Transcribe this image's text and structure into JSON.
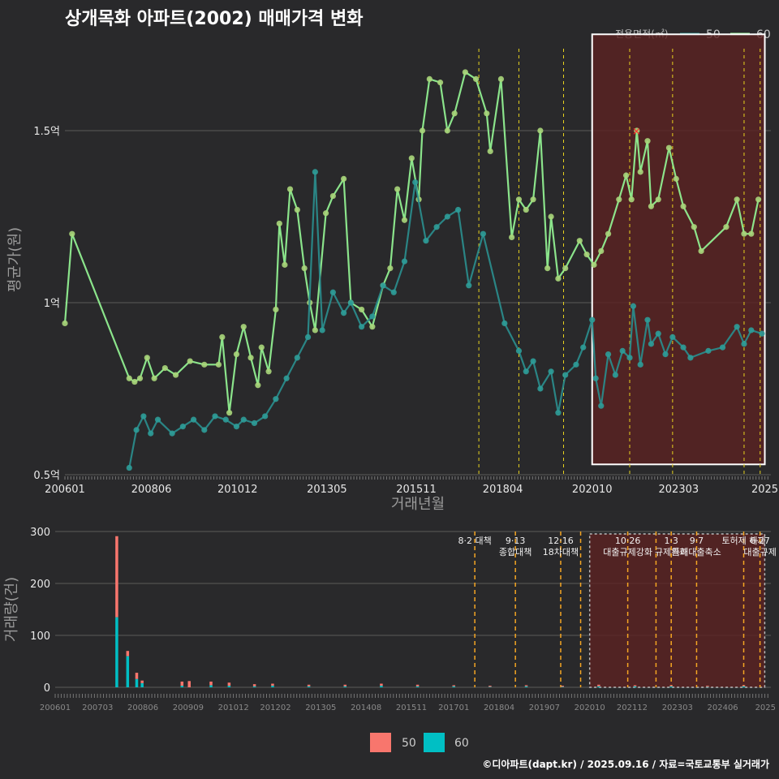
{
  "title": "상개목화 아파트(2002) 매매가격 변화",
  "footer": "©디아파트(dapt.kr) / 2025.09.16 / 자료=국토교통부 실거래가",
  "colors": {
    "bg": "#29292b",
    "grid": "#5a5a5a",
    "line50": "#2a8a8a",
    "dot50": "#2e9c98",
    "line60": "#90ee90",
    "dot60": "#a8d57a",
    "policy": "#e8d21f",
    "highlight": "#5b2222",
    "bar50": "#f8766d",
    "bar60": "#00bfc4",
    "marker": "#ff2a2a"
  },
  "legend": {
    "title": "전용면적(㎡)",
    "items": [
      {
        "label": "50",
        "color": "#2a8a8a"
      },
      {
        "label": "60",
        "color": "#90ee90"
      }
    ]
  },
  "bar_legend": {
    "items": [
      {
        "label": "50",
        "color": "#f8766d"
      },
      {
        "label": "60",
        "color": "#00bfc4"
      }
    ]
  },
  "chart_data": [
    {
      "type": "line",
      "ylabel": "평균가(원)",
      "xlabel": "거래년월",
      "ylim": [
        0.5,
        1.75
      ],
      "yticks": [
        {
          "v": 0.5,
          "label": "0.5억"
        },
        {
          "v": 1.0,
          "label": "1억"
        },
        {
          "v": 1.5,
          "label": "1.5억"
        }
      ],
      "xlim": [
        2006.0,
        2025.75
      ],
      "xticks": [
        {
          "v": 2006.0,
          "label": "200601"
        },
        {
          "v": 2008.42,
          "label": "200806"
        },
        {
          "v": 2010.83,
          "label": "201012"
        },
        {
          "v": 2013.33,
          "label": "201305"
        },
        {
          "v": 2015.83,
          "label": "201511"
        },
        {
          "v": 2018.25,
          "label": "201804"
        },
        {
          "v": 2020.75,
          "label": "202010"
        },
        {
          "v": 2023.17,
          "label": "202303"
        },
        {
          "v": 2025.58,
          "label": "2025"
        }
      ],
      "policy_lines": [
        2017.58,
        2018.7,
        2019.95,
        2021.8,
        2023.0,
        2025.0,
        2025.45
      ],
      "highlight": {
        "x0": 2020.75,
        "x1": 2025.58,
        "y0": 0.53,
        "y1": 1.78
      },
      "peak_marker": {
        "x": 2022.08,
        "y": 1.5
      },
      "series": [
        {
          "name": "60",
          "points": [
            [
              2006.0,
              0.94
            ],
            [
              2006.2,
              1.2
            ],
            [
              2007.8,
              0.78
            ],
            [
              2007.95,
              0.77
            ],
            [
              2008.1,
              0.78
            ],
            [
              2008.3,
              0.84
            ],
            [
              2008.5,
              0.78
            ],
            [
              2008.8,
              0.81
            ],
            [
              2009.1,
              0.79
            ],
            [
              2009.5,
              0.83
            ],
            [
              2009.9,
              0.82
            ],
            [
              2010.3,
              0.82
            ],
            [
              2010.4,
              0.9
            ],
            [
              2010.6,
              0.68
            ],
            [
              2010.8,
              0.85
            ],
            [
              2011.0,
              0.93
            ],
            [
              2011.2,
              0.84
            ],
            [
              2011.4,
              0.76
            ],
            [
              2011.5,
              0.87
            ],
            [
              2011.7,
              0.8
            ],
            [
              2011.9,
              0.98
            ],
            [
              2012.0,
              1.23
            ],
            [
              2012.15,
              1.11
            ],
            [
              2012.3,
              1.33
            ],
            [
              2012.5,
              1.27
            ],
            [
              2012.7,
              1.1
            ],
            [
              2012.85,
              1.0
            ],
            [
              2013.0,
              0.92
            ],
            [
              2013.3,
              1.26
            ],
            [
              2013.5,
              1.31
            ],
            [
              2013.8,
              1.36
            ],
            [
              2014.0,
              1.0
            ],
            [
              2014.3,
              0.98
            ],
            [
              2014.6,
              0.93
            ],
            [
              2014.9,
              1.05
            ],
            [
              2015.1,
              1.1
            ],
            [
              2015.3,
              1.33
            ],
            [
              2015.5,
              1.24
            ],
            [
              2015.7,
              1.42
            ],
            [
              2015.9,
              1.3
            ],
            [
              2016.0,
              1.5
            ],
            [
              2016.2,
              1.65
            ],
            [
              2016.5,
              1.64
            ],
            [
              2016.7,
              1.5
            ],
            [
              2016.9,
              1.55
            ],
            [
              2017.2,
              1.67
            ],
            [
              2017.5,
              1.65
            ],
            [
              2017.8,
              1.55
            ],
            [
              2017.9,
              1.44
            ],
            [
              2018.2,
              1.65
            ],
            [
              2018.5,
              1.19
            ],
            [
              2018.7,
              1.3
            ],
            [
              2018.9,
              1.27
            ],
            [
              2019.1,
              1.3
            ],
            [
              2019.3,
              1.5
            ],
            [
              2019.5,
              1.1
            ],
            [
              2019.6,
              1.25
            ],
            [
              2019.8,
              1.07
            ],
            [
              2020.0,
              1.1
            ],
            [
              2020.4,
              1.18
            ],
            [
              2020.6,
              1.14
            ],
            [
              2020.8,
              1.11
            ],
            [
              2021.0,
              1.15
            ],
            [
              2021.2,
              1.2
            ],
            [
              2021.5,
              1.3
            ],
            [
              2021.7,
              1.37
            ],
            [
              2021.85,
              1.3
            ],
            [
              2022.0,
              1.5
            ],
            [
              2022.1,
              1.38
            ],
            [
              2022.3,
              1.47
            ],
            [
              2022.4,
              1.28
            ],
            [
              2022.6,
              1.3
            ],
            [
              2022.9,
              1.45
            ],
            [
              2023.1,
              1.36
            ],
            [
              2023.3,
              1.28
            ],
            [
              2023.6,
              1.22
            ],
            [
              2023.8,
              1.15
            ],
            [
              2024.5,
              1.22
            ],
            [
              2024.8,
              1.3
            ],
            [
              2025.0,
              1.2
            ],
            [
              2025.2,
              1.2
            ],
            [
              2025.4,
              1.3
            ]
          ]
        },
        {
          "name": "50",
          "points": [
            [
              2007.8,
              0.52
            ],
            [
              2008.0,
              0.63
            ],
            [
              2008.2,
              0.67
            ],
            [
              2008.4,
              0.62
            ],
            [
              2008.6,
              0.66
            ],
            [
              2009.0,
              0.62
            ],
            [
              2009.3,
              0.64
            ],
            [
              2009.6,
              0.66
            ],
            [
              2009.9,
              0.63
            ],
            [
              2010.2,
              0.67
            ],
            [
              2010.5,
              0.66
            ],
            [
              2010.8,
              0.64
            ],
            [
              2011.0,
              0.66
            ],
            [
              2011.3,
              0.65
            ],
            [
              2011.6,
              0.67
            ],
            [
              2011.9,
              0.72
            ],
            [
              2012.2,
              0.78
            ],
            [
              2012.5,
              0.84
            ],
            [
              2012.8,
              0.9
            ],
            [
              2013.0,
              1.38
            ],
            [
              2013.2,
              0.92
            ],
            [
              2013.5,
              1.03
            ],
            [
              2013.8,
              0.97
            ],
            [
              2014.0,
              1.0
            ],
            [
              2014.3,
              0.93
            ],
            [
              2014.6,
              0.96
            ],
            [
              2014.9,
              1.05
            ],
            [
              2015.2,
              1.03
            ],
            [
              2015.5,
              1.12
            ],
            [
              2015.8,
              1.35
            ],
            [
              2016.1,
              1.18
            ],
            [
              2016.4,
              1.22
            ],
            [
              2016.7,
              1.25
            ],
            [
              2017.0,
              1.27
            ],
            [
              2017.3,
              1.05
            ],
            [
              2017.7,
              1.2
            ],
            [
              2018.3,
              0.94
            ],
            [
              2018.7,
              0.86
            ],
            [
              2018.9,
              0.8
            ],
            [
              2019.1,
              0.83
            ],
            [
              2019.3,
              0.75
            ],
            [
              2019.6,
              0.8
            ],
            [
              2019.8,
              0.68
            ],
            [
              2020.0,
              0.79
            ],
            [
              2020.3,
              0.82
            ],
            [
              2020.5,
              0.87
            ],
            [
              2020.75,
              0.95
            ],
            [
              2020.85,
              0.78
            ],
            [
              2021.0,
              0.7
            ],
            [
              2021.2,
              0.85
            ],
            [
              2021.4,
              0.79
            ],
            [
              2021.6,
              0.86
            ],
            [
              2021.8,
              0.84
            ],
            [
              2021.9,
              0.99
            ],
            [
              2022.1,
              0.82
            ],
            [
              2022.3,
              0.95
            ],
            [
              2022.4,
              0.88
            ],
            [
              2022.6,
              0.91
            ],
            [
              2022.8,
              0.85
            ],
            [
              2023.0,
              0.9
            ],
            [
              2023.3,
              0.87
            ],
            [
              2023.5,
              0.84
            ],
            [
              2024.0,
              0.86
            ],
            [
              2024.4,
              0.87
            ],
            [
              2024.8,
              0.93
            ],
            [
              2025.0,
              0.88
            ],
            [
              2025.2,
              0.92
            ],
            [
              2025.5,
              0.91
            ]
          ]
        }
      ]
    },
    {
      "type": "bar",
      "ylabel": "거래량(건)",
      "ylim": [
        0,
        300
      ],
      "yticks": [
        0,
        100,
        200,
        300
      ],
      "xticks": [
        {
          "v": 2006.0,
          "label": "200601"
        },
        {
          "v": 2007.17,
          "label": "200703"
        },
        {
          "v": 2008.42,
          "label": "200806"
        },
        {
          "v": 2009.67,
          "label": "200909"
        },
        {
          "v": 2010.92,
          "label": "201012"
        },
        {
          "v": 2012.08,
          "label": "201202"
        },
        {
          "v": 2013.33,
          "label": "201305"
        },
        {
          "v": 2014.58,
          "label": "201408"
        },
        {
          "v": 2015.83,
          "label": "201511"
        },
        {
          "v": 2017.0,
          "label": "201701"
        },
        {
          "v": 2018.25,
          "label": "201804"
        },
        {
          "v": 2019.5,
          "label": "201907"
        },
        {
          "v": 2020.75,
          "label": "202010"
        },
        {
          "v": 2021.92,
          "label": "202112"
        },
        {
          "v": 2023.17,
          "label": "202303"
        },
        {
          "v": 2024.42,
          "label": "202406"
        },
        {
          "v": 2025.6,
          "label": "2025"
        }
      ],
      "series": [
        {
          "name": "60",
          "bars": [
            [
              2007.7,
              135
            ],
            [
              2008.0,
              60
            ],
            [
              2008.25,
              16
            ],
            [
              2008.4,
              8
            ],
            [
              2009.5,
              3
            ],
            [
              2010.3,
              4
            ],
            [
              2010.8,
              3
            ],
            [
              2011.5,
              2
            ],
            [
              2012.0,
              3
            ],
            [
              2013.0,
              2
            ],
            [
              2014.0,
              2
            ],
            [
              2015.0,
              3
            ],
            [
              2016.0,
              2
            ],
            [
              2017.0,
              2
            ],
            [
              2018.0,
              1
            ],
            [
              2019.0,
              2
            ],
            [
              2020.0,
              1
            ],
            [
              2021.0,
              2
            ],
            [
              2022.0,
              2
            ],
            [
              2023.0,
              2
            ],
            [
              2024.0,
              1
            ],
            [
              2025.0,
              2
            ]
          ]
        },
        {
          "name": "50",
          "bars": [
            [
              2007.7,
              156
            ],
            [
              2008.0,
              10
            ],
            [
              2008.25,
              12
            ],
            [
              2008.4,
              5
            ],
            [
              2009.5,
              8
            ],
            [
              2009.7,
              12
            ],
            [
              2010.3,
              7
            ],
            [
              2010.8,
              6
            ],
            [
              2011.5,
              4
            ],
            [
              2012.0,
              4
            ],
            [
              2013.0,
              3
            ],
            [
              2014.0,
              3
            ],
            [
              2015.0,
              4
            ],
            [
              2016.0,
              3
            ],
            [
              2017.0,
              2
            ],
            [
              2018.0,
              2
            ],
            [
              2019.0,
              2
            ],
            [
              2020.0,
              2
            ],
            [
              2021.0,
              3
            ],
            [
              2022.0,
              2
            ],
            [
              2023.0,
              2
            ],
            [
              2024.0,
              2
            ],
            [
              2025.0,
              2
            ]
          ]
        }
      ],
      "policies": [
        {
          "x": 2017.58,
          "label": "8·2 대책"
        },
        {
          "x": 2018.7,
          "label": "9·13\n종합대책"
        },
        {
          "x": 2019.95,
          "label": "12·16\n18차대책"
        },
        {
          "x": 2020.5,
          "label": ""
        },
        {
          "x": 2021.8,
          "label": "10·26\n대출규제강화"
        },
        {
          "x": 2022.58,
          "label": ""
        },
        {
          "x": 2023.0,
          "label": "1·3\n규제완화"
        },
        {
          "x": 2023.7,
          "label": "9·7\n특례대출축소"
        },
        {
          "x": 2025.0,
          "label": "토허제 해제"
        },
        {
          "x": 2025.45,
          "label": "6·27\n대출규제"
        }
      ],
      "highlight": {
        "x0": 2020.75,
        "x1": 2025.58
      }
    }
  ]
}
